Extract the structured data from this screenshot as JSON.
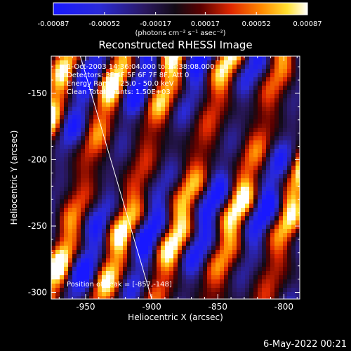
{
  "chart_data": {
    "type": "heatmap",
    "title": "Reconstructed RHESSI Image",
    "xlabel": "Heliocentric X (arcsec)",
    "ylabel": "Heliocentric Y (arcsec)",
    "xlim": [
      -976,
      -788
    ],
    "ylim": [
      -305,
      -122
    ],
    "x_ticks": [
      -950,
      -900,
      -850,
      -800
    ],
    "x_tick_labels": [
      "-950",
      "-900",
      "-850",
      "-800"
    ],
    "y_ticks": [
      -300,
      -250,
      -200,
      -150
    ],
    "y_tick_labels": [
      "-300",
      "-250",
      "-200",
      "-150"
    ],
    "colorbar": {
      "colormap": "blue-black-red-yellow-white",
      "range": [
        -0.00087,
        0.00087
      ],
      "tick_values": [
        -0.00087,
        -0.00052,
        -0.00017,
        0.00017,
        0.00052,
        0.00087
      ],
      "tick_labels": [
        "-0.00087",
        "-0.00052",
        "-0.00017",
        "0.00017",
        "0.00052",
        "0.00087"
      ],
      "unit": "(photons cm⁻² s⁻¹ asec⁻²)"
    },
    "annotations": [
      "1-Oct-2003 14:36:04.000 to 14:38:08.000",
      "Detectors: 3F 4F 5F 6F 7F 8F, Att 0",
      "Energy Range: 25.0 - 50.0 keV",
      "Clean    Total counts: 1.50E+03"
    ],
    "peak_label": "Position of Peak = [-857,-148]",
    "peak": {
      "x": -857,
      "y": -148
    },
    "limb_line": [
      {
        "x": -954,
        "y": -122
      },
      {
        "x": -900,
        "y": -305
      }
    ],
    "grid": false
  },
  "footer": {
    "timestamp": "6-May-2022 00:21"
  }
}
